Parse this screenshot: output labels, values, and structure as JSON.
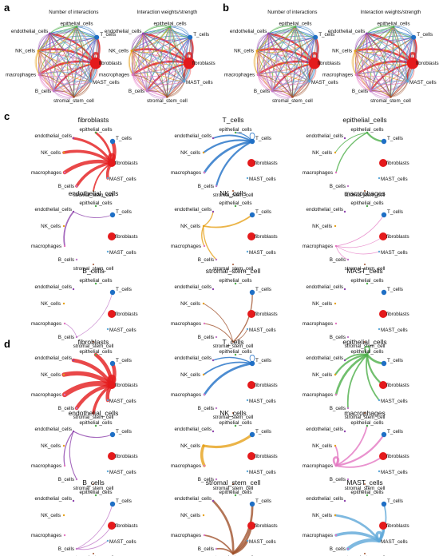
{
  "panel_labels": {
    "a": "a",
    "b": "b",
    "c": "c",
    "d": "d"
  },
  "top_titles": {
    "count": "Number of interactions",
    "weight": "Interaction weights/strength"
  },
  "cell_types": [
    "fibroblasts",
    "T_cells",
    "epithelial_cells",
    "endothelial_cells",
    "NK_cells",
    "macrophages",
    "B_cells",
    "stromal_stem_cell",
    "MAST_cells"
  ],
  "colors": {
    "fibroblasts": "#e41a1c",
    "T_cells": "#1f6fc5",
    "epithelial_cells": "#4daf4a",
    "endothelial_cells": "#8e44ad",
    "NK_cells": "#e6a11a",
    "macrophages": "#e377c2",
    "B_cells": "#c27ac9",
    "stromal_stem_cell": "#a0522d",
    "MAST_cells": "#5fa8d8"
  },
  "subplot_titles_c": [
    "fibroblasts",
    "T_cells",
    "epithelial_cells",
    "endothelial_cells",
    "NK_cells",
    "macrophages",
    "B_cells",
    "stromal_stem_cell",
    "MAST_cells"
  ],
  "subplot_titles_d": [
    "fibroblasts",
    "T_cells",
    "epithelial_cells",
    "endothelial_cells",
    "NK_cells",
    "macrophages",
    "B_cells",
    "stromal_stem_cell",
    "MAST_cells"
  ],
  "node_size_c": {
    "fibroblasts": 5,
    "T_cells": 3.2,
    "epithelial_cells": 1.2,
    "endothelial_cells": 1.2,
    "NK_cells": 1.2,
    "macrophages": 1.2,
    "B_cells": 1.2,
    "stromal_stem_cell": 1,
    "MAST_cells": 1.2
  },
  "node_size_d": {
    "fibroblasts": 5,
    "T_cells": 3.2,
    "epithelial_cells": 1.2,
    "endothelial_cells": 1.2,
    "NK_cells": 1.2,
    "macrophages": 1.2,
    "B_cells": 1.2,
    "stromal_stem_cell": 1,
    "MAST_cells": 1.2
  },
  "edges_c": {
    "fibroblasts": {
      "fibroblasts": 4.5,
      "T_cells": 5,
      "epithelial_cells": 3,
      "endothelial_cells": 3.5,
      "NK_cells": 4,
      "macrophages": 5,
      "B_cells": 4,
      "stromal_stem_cell": 2,
      "MAST_cells": 4
    },
    "T_cells": {
      "T_cells": 1,
      "epithelial_cells": 1.5,
      "endothelial_cells": 2,
      "NK_cells": 2.5,
      "macrophages": 3,
      "B_cells": 2.5
    },
    "epithelial_cells": {
      "T_cells": 2.5,
      "macrophages": 1.5,
      "NK_cells": 1
    },
    "endothelial_cells": {
      "T_cells": 1,
      "macrophages": 2
    },
    "NK_cells": {
      "T_cells": 2,
      "endothelial_cells": 1.5,
      "macrophages": 1.5,
      "B_cells": 1.5
    },
    "macrophages": {
      "T_cells": 0.8,
      "fibroblasts": 0.8,
      "MAST_cells": 0.8,
      "B_cells": 0.8
    },
    "B_cells": {
      "T_cells": 0.8,
      "macrophages": 0.8
    },
    "stromal_stem_cell": {
      "T_cells": 1.5,
      "macrophages": 1,
      "NK_cells": 1,
      "MAST_cells": 1
    },
    "MAST_cells": {}
  },
  "edges_d": {
    "fibroblasts": {
      "fibroblasts": 6,
      "T_cells": 5,
      "epithelial_cells": 5,
      "endothelial_cells": 5,
      "NK_cells": 6,
      "macrophages": 7,
      "B_cells": 5,
      "stromal_stem_cell": 4,
      "MAST_cells": 5
    },
    "T_cells": {
      "T_cells": 1,
      "endothelial_cells": 1.5,
      "NK_cells": 2,
      "macrophages": 3
    },
    "epithelial_cells": {
      "epithelial_cells": 2,
      "T_cells": 3,
      "endothelial_cells": 2,
      "NK_cells": 2.5,
      "macrophages": 3,
      "B_cells": 2,
      "fibroblasts": 2.5,
      "MAST_cells": 2
    },
    "endothelial_cells": {
      "T_cells": 1.2,
      "macrophages": 1.5,
      "B_cells": 1.2
    },
    "NK_cells": {
      "T_cells": 3.5,
      "macrophages": 4
    },
    "macrophages": {
      "macrophages": 3,
      "T_cells": 2.5,
      "fibroblasts": 2,
      "NK_cells": 2,
      "epithelial_cells": 2
    },
    "B_cells": {
      "T_cells": 1,
      "fibroblasts": 1,
      "MAST_cells": 1
    },
    "stromal_stem_cell": {
      "endothelial_cells": 3,
      "T_cells": 3,
      "fibroblasts": 3,
      "MAST_cells": 3,
      "B_cells": 2,
      "macrophages": 2
    },
    "MAST_cells": {
      "T_cells": 2,
      "fibroblasts": 4,
      "MAST_cells": 4,
      "NK_cells": 3,
      "macrophages": 4,
      "B_cells": 5
    }
  }
}
